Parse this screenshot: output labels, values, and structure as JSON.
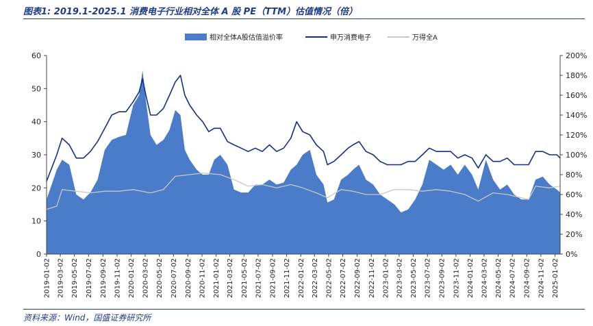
{
  "header": {
    "title": "图表1:  2019.1-2025.1 消费电子行业相对全体 A 股 PE（TTM）估值情况（倍）"
  },
  "footer": {
    "source": "资料来源：Wind，国盛证券研究所"
  },
  "colors": {
    "premium_area": "#4a7cc9",
    "consumer_electronics_line": "#0f2f8a",
    "wande_all_a_line": "#c8c8c8",
    "title_blue": "#1f3c88"
  },
  "chart_data": {
    "type": "area",
    "title": "",
    "legend_position": "top-center",
    "y_left": {
      "range": [
        0,
        60
      ],
      "ticks": [
        "0",
        "10",
        "20",
        "30",
        "40",
        "50",
        "60"
      ]
    },
    "y_right": {
      "range": [
        0,
        200
      ],
      "ticks": [
        "0%",
        "20%",
        "40%",
        "60%",
        "80%",
        "100%",
        "120%",
        "140%",
        "160%",
        "180%",
        "200%"
      ]
    },
    "x_range": [
      "2019-01-02",
      "2025-01-24"
    ],
    "x_ticks": [
      "2019-01-02",
      "2019-03-02",
      "2019-05-02",
      "2019-07-02",
      "2019-09-02",
      "2019-11-02",
      "2020-01-02",
      "2020-03-02",
      "2020-05-02",
      "2020-07-02",
      "2020-09-02",
      "2020-11-02",
      "2021-01-02",
      "2021-03-02",
      "2021-05-02",
      "2021-07-02",
      "2021-09-02",
      "2021-11-02",
      "2022-01-02",
      "2022-03-02",
      "2022-05-02",
      "2022-07-02",
      "2022-09-02",
      "2022-11-02",
      "2023-01-02",
      "2023-03-02",
      "2023-05-02",
      "2023-07-02",
      "2023-09-02",
      "2023-11-02",
      "2024-01-02",
      "2024-03-02",
      "2024-05-02",
      "2024-07-02",
      "2024-09-02",
      "2024-11-02",
      "2025-01-02"
    ],
    "series": [
      {
        "name": "相对全体A股估值溢价率",
        "kind": "area",
        "axis": "right",
        "x": [
          "2019-01-02",
          "2019-02-15",
          "2019-03-10",
          "2019-04-10",
          "2019-05-10",
          "2019-06-10",
          "2019-07-10",
          "2019-08-10",
          "2019-09-10",
          "2019-10-10",
          "2019-11-10",
          "2019-12-10",
          "2020-01-10",
          "2020-02-05",
          "2020-02-20",
          "2020-03-05",
          "2020-03-25",
          "2020-04-20",
          "2020-05-20",
          "2020-06-15",
          "2020-07-10",
          "2020-08-01",
          "2020-08-20",
          "2020-09-10",
          "2020-10-10",
          "2020-11-05",
          "2020-12-01",
          "2020-12-25",
          "2021-01-20",
          "2021-02-20",
          "2021-03-20",
          "2021-04-20",
          "2021-05-20",
          "2021-06-20",
          "2021-07-20",
          "2021-08-20",
          "2021-09-20",
          "2021-10-20",
          "2021-11-20",
          "2021-12-15",
          "2022-01-10",
          "2022-02-10",
          "2022-03-10",
          "2022-04-10",
          "2022-04-27",
          "2022-05-25",
          "2022-06-25",
          "2022-07-25",
          "2022-08-15",
          "2022-09-10",
          "2022-10-10",
          "2022-11-10",
          "2022-12-10",
          "2023-01-10",
          "2023-02-10",
          "2023-03-10",
          "2023-04-10",
          "2023-05-10",
          "2023-06-10",
          "2023-07-10",
          "2023-08-10",
          "2023-09-10",
          "2023-10-10",
          "2023-11-10",
          "2023-12-10",
          "2024-01-10",
          "2024-02-06",
          "2024-03-10",
          "2024-04-10",
          "2024-05-10",
          "2024-06-10",
          "2024-07-10",
          "2024-08-10",
          "2024-09-10",
          "2024-10-10",
          "2024-11-10",
          "2024-12-10",
          "2025-01-10",
          "2025-01-24"
        ],
        "values": [
          55,
          85,
          95,
          90,
          60,
          55,
          62,
          75,
          105,
          115,
          118,
          120,
          150,
          160,
          185,
          155,
          120,
          110,
          115,
          125,
          145,
          140,
          105,
          95,
          85,
          80,
          80,
          95,
          100,
          90,
          65,
          62,
          62,
          70,
          70,
          75,
          70,
          72,
          85,
          90,
          100,
          105,
          80,
          70,
          52,
          55,
          75,
          80,
          85,
          90,
          75,
          70,
          60,
          55,
          50,
          42,
          45,
          55,
          70,
          95,
          90,
          85,
          90,
          80,
          90,
          80,
          65,
          95,
          75,
          65,
          70,
          60,
          55,
          55,
          75,
          78,
          70,
          65,
          62
        ]
      },
      {
        "name": "申万消费电子",
        "kind": "line",
        "axis": "left",
        "x": [
          "2019-01-02",
          "2019-02-15",
          "2019-03-10",
          "2019-04-10",
          "2019-05-10",
          "2019-06-10",
          "2019-07-10",
          "2019-08-10",
          "2019-09-10",
          "2019-10-10",
          "2019-11-10",
          "2019-12-10",
          "2020-01-10",
          "2020-02-05",
          "2020-02-20",
          "2020-03-05",
          "2020-03-25",
          "2020-04-20",
          "2020-05-20",
          "2020-06-15",
          "2020-07-10",
          "2020-08-01",
          "2020-08-20",
          "2020-09-10",
          "2020-10-10",
          "2020-11-05",
          "2020-12-01",
          "2020-12-25",
          "2021-01-20",
          "2021-02-20",
          "2021-03-20",
          "2021-04-20",
          "2021-05-20",
          "2021-06-20",
          "2021-07-20",
          "2021-08-20",
          "2021-09-20",
          "2021-10-20",
          "2021-11-20",
          "2021-12-15",
          "2022-01-10",
          "2022-02-10",
          "2022-03-10",
          "2022-04-10",
          "2022-04-27",
          "2022-05-25",
          "2022-06-25",
          "2022-07-25",
          "2022-08-15",
          "2022-09-10",
          "2022-10-10",
          "2022-11-10",
          "2022-12-10",
          "2023-01-10",
          "2023-02-10",
          "2023-03-10",
          "2023-04-10",
          "2023-05-10",
          "2023-06-10",
          "2023-07-10",
          "2023-08-10",
          "2023-09-10",
          "2023-10-10",
          "2023-11-10",
          "2023-12-10",
          "2024-01-10",
          "2024-02-06",
          "2024-03-10",
          "2024-04-10",
          "2024-05-10",
          "2024-06-10",
          "2024-07-10",
          "2024-08-10",
          "2024-09-10",
          "2024-10-10",
          "2024-11-10",
          "2024-12-10",
          "2025-01-10",
          "2025-01-24"
        ],
        "values": [
          22,
          30,
          35,
          33,
          29,
          29,
          31,
          34,
          38,
          42,
          43,
          43,
          46,
          49,
          53,
          48,
          42,
          42,
          44,
          48,
          52,
          54,
          48,
          45,
          42,
          40,
          37,
          38,
          38,
          34,
          33,
          32,
          31,
          32,
          31,
          33,
          31,
          32,
          35,
          40,
          37,
          36,
          33,
          31,
          27,
          28,
          30,
          32,
          33,
          34,
          31,
          30,
          28,
          27,
          27,
          27,
          28,
          28,
          30,
          32,
          31,
          31,
          31,
          29,
          30,
          29,
          26,
          30,
          28,
          28,
          29,
          27,
          27,
          27,
          31,
          31,
          30,
          30,
          29
        ]
      },
      {
        "name": "万得全A",
        "kind": "line",
        "axis": "left",
        "x": [
          "2019-01-02",
          "2019-02-15",
          "2019-03-10",
          "2019-05-10",
          "2019-07-10",
          "2019-09-10",
          "2019-11-10",
          "2020-01-10",
          "2020-03-25",
          "2020-05-20",
          "2020-07-10",
          "2020-09-10",
          "2020-11-05",
          "2021-01-20",
          "2021-03-20",
          "2021-05-20",
          "2021-07-20",
          "2021-09-20",
          "2021-11-20",
          "2022-01-10",
          "2022-03-10",
          "2022-04-27",
          "2022-06-25",
          "2022-08-15",
          "2022-10-10",
          "2022-12-10",
          "2023-02-10",
          "2023-04-10",
          "2023-06-10",
          "2023-08-10",
          "2023-10-10",
          "2023-12-10",
          "2024-02-06",
          "2024-04-10",
          "2024-06-10",
          "2024-08-10",
          "2024-09-10",
          "2024-10-10",
          "2024-12-10",
          "2025-01-24"
        ],
        "values": [
          13.5,
          14.5,
          19.5,
          19.0,
          18.5,
          19.0,
          19.0,
          19.5,
          18.5,
          19.5,
          23.5,
          24.0,
          24.5,
          24.0,
          22.5,
          20.5,
          21.0,
          20.0,
          21.0,
          20.0,
          18.5,
          17.0,
          19.5,
          19.0,
          18.0,
          18.0,
          19.5,
          19.5,
          19.0,
          19.5,
          19.0,
          18.0,
          16.0,
          18.5,
          18.0,
          17.0,
          16.5,
          20.5,
          20.0,
          20.5
        ]
      }
    ]
  }
}
